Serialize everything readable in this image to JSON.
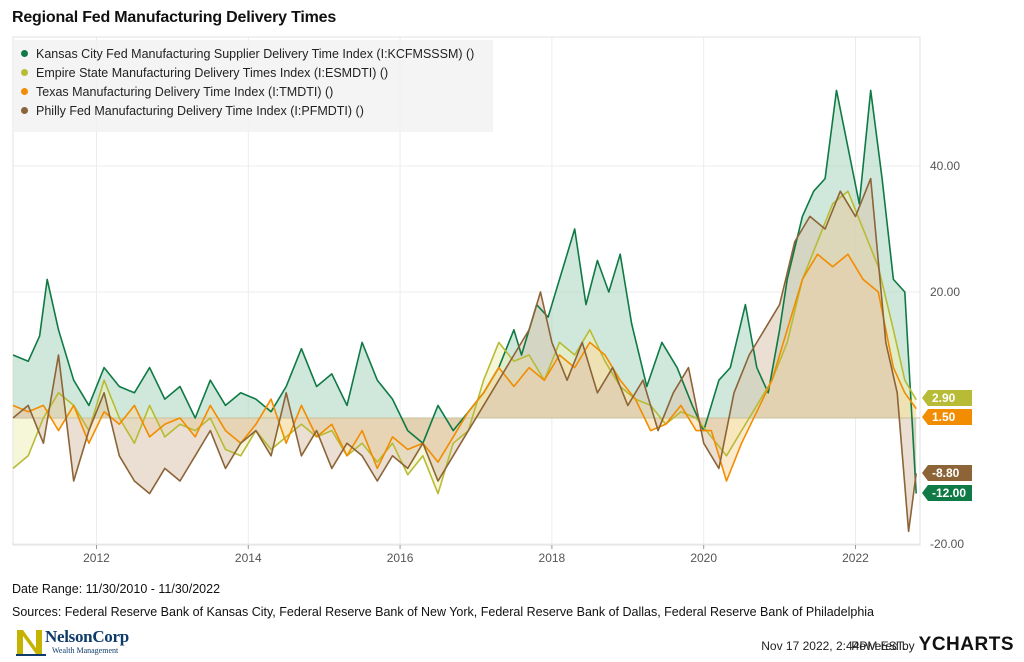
{
  "chart_data": {
    "type": "area",
    "title": "Regional Fed Manufacturing Delivery Times",
    "x_range": [
      "2010-11",
      "2022-11"
    ],
    "ylim": [
      -20,
      60
    ],
    "y_ticks": [
      -20,
      20,
      40
    ],
    "y_tick_labels": [
      "-20.00",
      "20.00",
      "40.00"
    ],
    "x_ticks": [
      2012,
      2014,
      2016,
      2018,
      2020,
      2022
    ],
    "grid": true,
    "legend_position": "top-left",
    "series": [
      {
        "name": "Kansas City Fed Manufacturing Supplier Delivery Time Index (I:KCFMSSSM) ()",
        "color": "#0f7a45",
        "fill": "#a8d5bd",
        "last_value": -12.0,
        "last_label": "-12.00",
        "points": [
          [
            2010.9,
            10
          ],
          [
            2011.1,
            9
          ],
          [
            2011.25,
            13
          ],
          [
            2011.35,
            22
          ],
          [
            2011.5,
            14
          ],
          [
            2011.7,
            6
          ],
          [
            2011.9,
            2
          ],
          [
            2012.1,
            8
          ],
          [
            2012.3,
            5
          ],
          [
            2012.5,
            4
          ],
          [
            2012.7,
            8
          ],
          [
            2012.9,
            3
          ],
          [
            2013.1,
            5
          ],
          [
            2013.3,
            0
          ],
          [
            2013.5,
            6
          ],
          [
            2013.7,
            2
          ],
          [
            2013.9,
            4
          ],
          [
            2014.1,
            3
          ],
          [
            2014.3,
            1
          ],
          [
            2014.5,
            5
          ],
          [
            2014.7,
            11
          ],
          [
            2014.9,
            5
          ],
          [
            2015.1,
            7
          ],
          [
            2015.3,
            2
          ],
          [
            2015.5,
            12
          ],
          [
            2015.7,
            6
          ],
          [
            2015.9,
            3
          ],
          [
            2016.1,
            -2
          ],
          [
            2016.3,
            -4
          ],
          [
            2016.5,
            2
          ],
          [
            2016.7,
            -2
          ],
          [
            2016.9,
            1
          ],
          [
            2017.1,
            4
          ],
          [
            2017.3,
            8
          ],
          [
            2017.5,
            14
          ],
          [
            2017.6,
            10
          ],
          [
            2017.8,
            18
          ],
          [
            2017.95,
            16
          ],
          [
            2018.1,
            22
          ],
          [
            2018.3,
            30
          ],
          [
            2018.45,
            18
          ],
          [
            2018.6,
            25
          ],
          [
            2018.75,
            20
          ],
          [
            2018.9,
            26
          ],
          [
            2019.05,
            15
          ],
          [
            2019.25,
            5
          ],
          [
            2019.45,
            12
          ],
          [
            2019.65,
            8
          ],
          [
            2019.85,
            2
          ],
          [
            2020.0,
            -2
          ],
          [
            2020.2,
            6
          ],
          [
            2020.35,
            8
          ],
          [
            2020.55,
            18
          ],
          [
            2020.7,
            8
          ],
          [
            2020.85,
            4
          ],
          [
            2021.0,
            14
          ],
          [
            2021.1,
            22
          ],
          [
            2021.3,
            32
          ],
          [
            2021.45,
            36
          ],
          [
            2021.6,
            38
          ],
          [
            2021.75,
            52
          ],
          [
            2021.85,
            46
          ],
          [
            2021.95,
            40
          ],
          [
            2022.05,
            34
          ],
          [
            2022.2,
            52
          ],
          [
            2022.35,
            38
          ],
          [
            2022.5,
            22
          ],
          [
            2022.65,
            20
          ],
          [
            2022.8,
            -12
          ]
        ]
      },
      {
        "name": "Empire State Manufacturing Delivery Times Index (I:ESMDTI) ()",
        "color": "#b8bb35",
        "fill": "#eef0b8",
        "last_value": 2.9,
        "last_label": "2.90",
        "points": [
          [
            2010.9,
            -8
          ],
          [
            2011.1,
            -6
          ],
          [
            2011.3,
            0
          ],
          [
            2011.5,
            4
          ],
          [
            2011.7,
            2
          ],
          [
            2011.9,
            -2
          ],
          [
            2012.1,
            6
          ],
          [
            2012.3,
            0
          ],
          [
            2012.5,
            -4
          ],
          [
            2012.7,
            2
          ],
          [
            2012.9,
            -3
          ],
          [
            2013.1,
            -1
          ],
          [
            2013.3,
            -2
          ],
          [
            2013.5,
            0
          ],
          [
            2013.7,
            -5
          ],
          [
            2013.9,
            -6
          ],
          [
            2014.1,
            -2
          ],
          [
            2014.3,
            -5
          ],
          [
            2014.5,
            -3
          ],
          [
            2014.7,
            -1
          ],
          [
            2014.9,
            -3
          ],
          [
            2015.1,
            -2
          ],
          [
            2015.3,
            -6
          ],
          [
            2015.5,
            -4
          ],
          [
            2015.7,
            -7
          ],
          [
            2015.9,
            -4
          ],
          [
            2016.1,
            -9
          ],
          [
            2016.3,
            -6
          ],
          [
            2016.5,
            -12
          ],
          [
            2016.7,
            -4
          ],
          [
            2016.9,
            -2
          ],
          [
            2017.1,
            6
          ],
          [
            2017.3,
            12
          ],
          [
            2017.5,
            9
          ],
          [
            2017.7,
            10
          ],
          [
            2017.9,
            6
          ],
          [
            2018.1,
            12
          ],
          [
            2018.3,
            10
          ],
          [
            2018.5,
            14
          ],
          [
            2018.7,
            9
          ],
          [
            2018.9,
            5
          ],
          [
            2019.1,
            3
          ],
          [
            2019.3,
            2
          ],
          [
            2019.5,
            -1
          ],
          [
            2019.7,
            1
          ],
          [
            2019.9,
            0
          ],
          [
            2020.1,
            -3
          ],
          [
            2020.3,
            -6
          ],
          [
            2020.5,
            -2
          ],
          [
            2020.7,
            2
          ],
          [
            2020.9,
            6
          ],
          [
            2021.1,
            12
          ],
          [
            2021.3,
            22
          ],
          [
            2021.5,
            28
          ],
          [
            2021.7,
            34
          ],
          [
            2021.9,
            36
          ],
          [
            2022.1,
            30
          ],
          [
            2022.3,
            24
          ],
          [
            2022.5,
            14
          ],
          [
            2022.65,
            6
          ],
          [
            2022.8,
            2.9
          ]
        ]
      },
      {
        "name": "Texas Manufacturing Delivery Time Index (I:TMDTI) ()",
        "color": "#f28c00",
        "fill": "#f9d9a6",
        "last_value": 1.5,
        "last_label": "1.50",
        "points": [
          [
            2010.9,
            2
          ],
          [
            2011.1,
            1
          ],
          [
            2011.3,
            2
          ],
          [
            2011.5,
            -2
          ],
          [
            2011.7,
            2
          ],
          [
            2011.9,
            -4
          ],
          [
            2012.1,
            1
          ],
          [
            2012.3,
            -1
          ],
          [
            2012.5,
            2
          ],
          [
            2012.7,
            -3
          ],
          [
            2012.9,
            -1
          ],
          [
            2013.1,
            0
          ],
          [
            2013.3,
            -3
          ],
          [
            2013.5,
            2
          ],
          [
            2013.7,
            -2
          ],
          [
            2013.9,
            -4
          ],
          [
            2014.1,
            -1
          ],
          [
            2014.3,
            3
          ],
          [
            2014.5,
            -4
          ],
          [
            2014.7,
            2
          ],
          [
            2014.9,
            -3
          ],
          [
            2015.1,
            -1
          ],
          [
            2015.3,
            -6
          ],
          [
            2015.5,
            -2
          ],
          [
            2015.7,
            -8
          ],
          [
            2015.9,
            -3
          ],
          [
            2016.1,
            -5
          ],
          [
            2016.3,
            -4
          ],
          [
            2016.5,
            -7
          ],
          [
            2016.7,
            -3
          ],
          [
            2016.9,
            1
          ],
          [
            2017.1,
            4
          ],
          [
            2017.3,
            8
          ],
          [
            2017.5,
            5
          ],
          [
            2017.7,
            8
          ],
          [
            2017.9,
            6
          ],
          [
            2018.1,
            10
          ],
          [
            2018.3,
            8
          ],
          [
            2018.5,
            12
          ],
          [
            2018.7,
            10
          ],
          [
            2018.9,
            6
          ],
          [
            2019.1,
            3
          ],
          [
            2019.3,
            -2
          ],
          [
            2019.5,
            -1
          ],
          [
            2019.7,
            2
          ],
          [
            2019.9,
            -2
          ],
          [
            2020.1,
            -2
          ],
          [
            2020.3,
            -10
          ],
          [
            2020.5,
            -4
          ],
          [
            2020.7,
            1
          ],
          [
            2020.9,
            6
          ],
          [
            2021.1,
            14
          ],
          [
            2021.3,
            22
          ],
          [
            2021.5,
            26
          ],
          [
            2021.7,
            24
          ],
          [
            2021.9,
            26
          ],
          [
            2022.1,
            22
          ],
          [
            2022.3,
            20
          ],
          [
            2022.5,
            8
          ],
          [
            2022.65,
            4
          ],
          [
            2022.8,
            1.5
          ]
        ]
      },
      {
        "name": "Philly Fed Manufacturing Delivery Time Index (I:PFMDTI) ()",
        "color": "#8c6437",
        "fill": "#d8c4ad",
        "last_value": -8.8,
        "last_label": "-8.80",
        "points": [
          [
            2010.9,
            0
          ],
          [
            2011.1,
            2
          ],
          [
            2011.3,
            -4
          ],
          [
            2011.5,
            10
          ],
          [
            2011.7,
            -10
          ],
          [
            2011.9,
            -2
          ],
          [
            2012.1,
            4
          ],
          [
            2012.3,
            -6
          ],
          [
            2012.5,
            -10
          ],
          [
            2012.7,
            -12
          ],
          [
            2012.9,
            -8
          ],
          [
            2013.1,
            -10
          ],
          [
            2013.3,
            -6
          ],
          [
            2013.5,
            -2
          ],
          [
            2013.7,
            -8
          ],
          [
            2013.9,
            -4
          ],
          [
            2014.1,
            -2
          ],
          [
            2014.3,
            -6
          ],
          [
            2014.5,
            4
          ],
          [
            2014.7,
            -6
          ],
          [
            2014.9,
            -2
          ],
          [
            2015.1,
            -8
          ],
          [
            2015.3,
            -4
          ],
          [
            2015.5,
            -6
          ],
          [
            2015.7,
            -10
          ],
          [
            2015.9,
            -6
          ],
          [
            2016.1,
            -8
          ],
          [
            2016.3,
            -4
          ],
          [
            2016.5,
            -10
          ],
          [
            2016.7,
            -6
          ],
          [
            2016.9,
            -2
          ],
          [
            2017.1,
            2
          ],
          [
            2017.3,
            6
          ],
          [
            2017.5,
            10
          ],
          [
            2017.7,
            14
          ],
          [
            2017.85,
            20
          ],
          [
            2018.0,
            12
          ],
          [
            2018.2,
            6
          ],
          [
            2018.4,
            12
          ],
          [
            2018.6,
            4
          ],
          [
            2018.8,
            8
          ],
          [
            2019.0,
            2
          ],
          [
            2019.2,
            6
          ],
          [
            2019.4,
            -2
          ],
          [
            2019.6,
            4
          ],
          [
            2019.8,
            8
          ],
          [
            2020.0,
            -4
          ],
          [
            2020.2,
            -8
          ],
          [
            2020.4,
            4
          ],
          [
            2020.6,
            10
          ],
          [
            2020.8,
            14
          ],
          [
            2021.0,
            18
          ],
          [
            2021.2,
            28
          ],
          [
            2021.4,
            32
          ],
          [
            2021.6,
            30
          ],
          [
            2021.8,
            36
          ],
          [
            2022.0,
            32
          ],
          [
            2022.2,
            38
          ],
          [
            2022.4,
            12
          ],
          [
            2022.55,
            4
          ],
          [
            2022.7,
            -18
          ],
          [
            2022.8,
            -8.8
          ]
        ]
      }
    ]
  },
  "footer": {
    "date_range": "Date Range: 11/30/2010 - 11/30/2022",
    "sources": "Sources: Federal Reserve Bank of Kansas City, Federal Reserve Bank of New York, Federal Reserve Bank of Dallas, Federal Reserve Bank of Philadelphia",
    "timestamp": "Nov 17 2022, 2:44PM EST.",
    "powered_by": "Powered by",
    "brand": "YCHARTS"
  },
  "logo": {
    "name": "NelsonCorp",
    "sub": "Wealth Management"
  }
}
